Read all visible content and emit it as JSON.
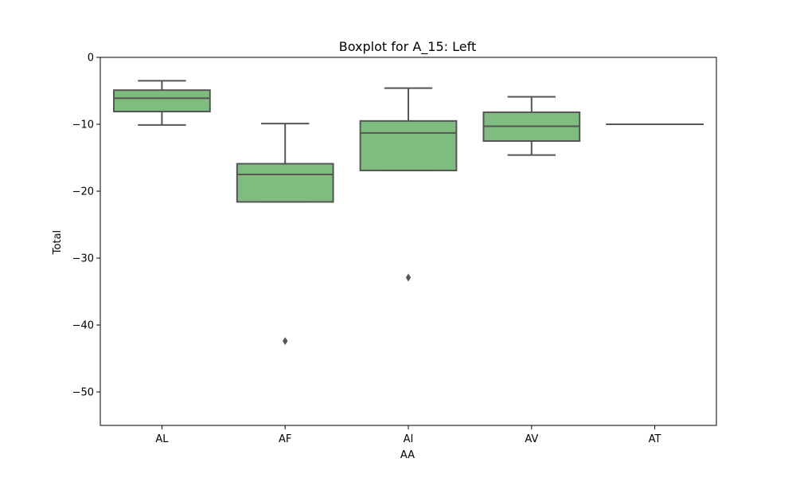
{
  "chart_data": {
    "type": "box",
    "title": "Boxplot for A_15: Left",
    "xlabel": "AA",
    "ylabel": "Total",
    "ylim": [
      -55,
      0
    ],
    "yticks": [
      0,
      -10,
      -20,
      -30,
      -40,
      -50
    ],
    "ytick_labels": [
      "0",
      "−10",
      "−20",
      "−30",
      "−40",
      "−50"
    ],
    "categories": [
      "AL",
      "AF",
      "AI",
      "AV",
      "AT"
    ],
    "boxes": [
      {
        "category": "AL",
        "whisker_low": -10.1,
        "q1": -8.1,
        "median": -6.1,
        "q3": -4.9,
        "whisker_high": -3.5,
        "outliers": []
      },
      {
        "category": "AF",
        "whisker_low": -21.6,
        "q1": -21.6,
        "median": -17.5,
        "q3": -15.9,
        "whisker_high": -9.9,
        "outliers": [
          -42.4
        ]
      },
      {
        "category": "AI",
        "whisker_low": -16.9,
        "q1": -16.9,
        "median": -11.3,
        "q3": -9.5,
        "whisker_high": -4.6,
        "outliers": [
          -32.9
        ]
      },
      {
        "category": "AV",
        "whisker_low": -14.6,
        "q1": -12.5,
        "median": -10.3,
        "q3": -8.2,
        "whisker_high": -5.9,
        "outliers": []
      },
      {
        "category": "AT",
        "whisker_low": -10.0,
        "q1": -10.0,
        "median": -10.0,
        "q3": -10.0,
        "whisker_high": -10.0,
        "outliers": []
      }
    ],
    "grid": false,
    "colors": {
      "box_fill": "#7fbc7f",
      "line": "#555555"
    }
  }
}
